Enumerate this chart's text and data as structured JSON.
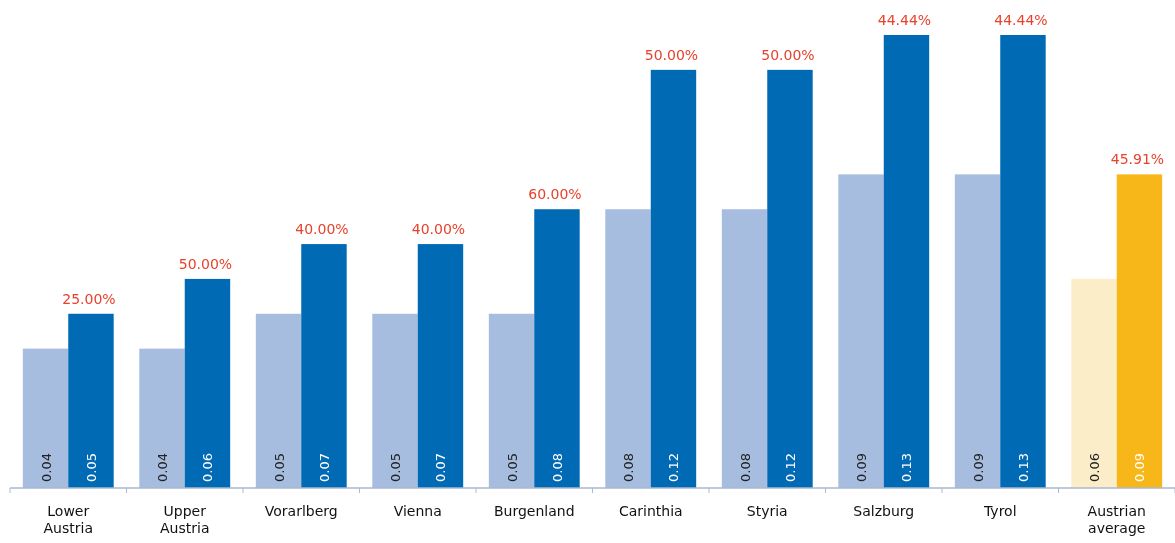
{
  "chart_data": {
    "type": "bar",
    "categories": [
      "Lower Austria",
      "Upper Austria",
      "Vorarlberg",
      "Vienna",
      "Burgenland",
      "Carinthia",
      "Styria",
      "Salzburg",
      "Tyrol",
      "Austrian average"
    ],
    "series": [
      {
        "colors": [
          "#a6bde0",
          "#a6bde0",
          "#a6bde0",
          "#a6bde0",
          "#a6bde0",
          "#a6bde0",
          "#a6bde0",
          "#a6bde0",
          "#a6bde0",
          "#fcedc9"
        ],
        "values": [
          0.04,
          0.04,
          0.05,
          0.05,
          0.05,
          0.08,
          0.08,
          0.09,
          0.09,
          0.06
        ]
      },
      {
        "colors": [
          "#006ab5",
          "#006ab5",
          "#006ab5",
          "#006ab5",
          "#006ab5",
          "#006ab5",
          "#006ab5",
          "#006ab5",
          "#006ab5",
          "#f7b718"
        ],
        "values": [
          0.05,
          0.06,
          0.07,
          0.07,
          0.08,
          0.12,
          0.12,
          0.13,
          0.13,
          0.09
        ]
      }
    ],
    "data_labels": true,
    "annotations": [
      {
        "text": "25.00%",
        "x": "Lower Austria",
        "y": 0.05
      },
      {
        "text": "50.00%",
        "x": "Upper Austria",
        "y": 0.06
      },
      {
        "text": "40.00%",
        "x": "Vorarlberg",
        "y": 0.07
      },
      {
        "text": "40.00%",
        "x": "Vienna",
        "y": 0.07
      },
      {
        "text": "60.00%",
        "x": "Burgenland",
        "y": 0.08
      },
      {
        "text": "50.00%",
        "x": "Carinthia",
        "y": 0.12
      },
      {
        "text": "50.00%",
        "x": "Styria",
        "y": 0.12
      },
      {
        "text": "44.44%",
        "x": "Salzburg",
        "y": 0.13
      },
      {
        "text": "44.44%",
        "x": "Tyrol",
        "y": 0.13
      },
      {
        "text": "45.91%",
        "x": "Austrian average",
        "y": 0.09
      }
    ]
  }
}
